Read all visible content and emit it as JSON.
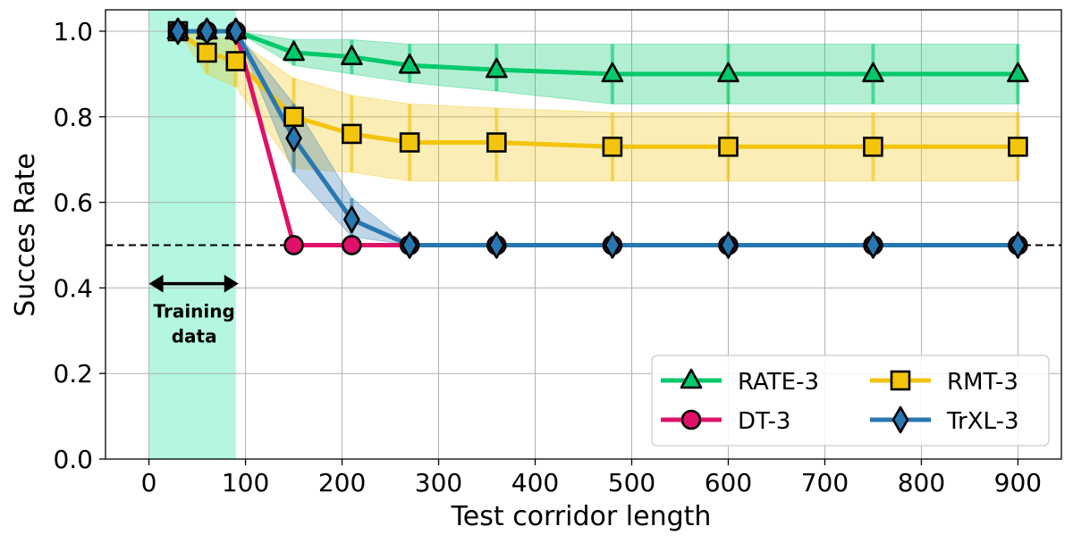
{
  "chart_data": {
    "type": "line",
    "title": "",
    "xlabel": "Test corridor length",
    "ylabel": "Succes Rate",
    "xlim": [
      -45,
      945
    ],
    "ylim": [
      0.0,
      1.05
    ],
    "xticks": [
      0,
      100,
      200,
      300,
      400,
      500,
      600,
      700,
      800,
      900
    ],
    "yticks": [
      0.0,
      0.2,
      0.4,
      0.6,
      0.8,
      1.0
    ],
    "ytick_labels": [
      "0.0",
      "0.2",
      "0.4",
      "0.6",
      "0.8",
      "1.0"
    ],
    "grid": true,
    "legend_position": "bottom-right",
    "training_region": {
      "x_start": 0,
      "x_end": 90,
      "label_line1": "Training",
      "label_line2": "data",
      "color": "#b3f7e2",
      "arrow_y": 0.41
    },
    "reference_line": {
      "y": 0.5,
      "style": "dashed",
      "color": "#000000"
    },
    "series": [
      {
        "name": "RATE-3",
        "color": "#00c96b",
        "marker": "triangle",
        "x": [
          30,
          60,
          90,
          150,
          210,
          270,
          360,
          480,
          600,
          750,
          900
        ],
        "values": [
          1.0,
          1.0,
          1.0,
          0.95,
          0.94,
          0.92,
          0.91,
          0.9,
          0.9,
          0.9,
          0.9
        ],
        "lower": [
          1.0,
          1.0,
          1.0,
          0.92,
          0.9,
          0.88,
          0.86,
          0.83,
          0.83,
          0.83,
          0.83
        ],
        "upper": [
          1.0,
          1.0,
          1.0,
          0.98,
          0.98,
          0.97,
          0.97,
          0.97,
          0.97,
          0.97,
          0.97
        ]
      },
      {
        "name": "RMT-3",
        "color": "#f2c40c",
        "marker": "square",
        "x": [
          30,
          60,
          90,
          150,
          210,
          270,
          360,
          480,
          600,
          750,
          900
        ],
        "values": [
          1.0,
          0.95,
          0.93,
          0.8,
          0.76,
          0.74,
          0.74,
          0.73,
          0.73,
          0.73,
          0.73
        ],
        "lower": [
          1.0,
          0.9,
          0.87,
          0.68,
          0.67,
          0.65,
          0.65,
          0.65,
          0.65,
          0.65,
          0.65
        ],
        "upper": [
          1.0,
          0.99,
          0.98,
          0.89,
          0.85,
          0.83,
          0.82,
          0.81,
          0.81,
          0.81,
          0.81
        ]
      },
      {
        "name": "DT-3",
        "color": "#e0116a",
        "marker": "circle",
        "x": [
          30,
          60,
          90,
          150,
          210,
          270,
          360,
          480,
          600,
          750,
          900
        ],
        "values": [
          1.0,
          1.0,
          1.0,
          0.5,
          0.5,
          0.5,
          0.5,
          0.5,
          0.5,
          0.5,
          0.5
        ]
      },
      {
        "name": "TrXL-3",
        "color": "#2877b0",
        "marker": "diamond",
        "x": [
          30,
          60,
          90,
          150,
          210,
          270,
          360,
          480,
          600,
          750,
          900
        ],
        "values": [
          1.0,
          1.0,
          1.0,
          0.75,
          0.56,
          0.5,
          0.5,
          0.5,
          0.5,
          0.5,
          0.5
        ],
        "lower": [
          1.0,
          1.0,
          1.0,
          0.67,
          0.52,
          0.5,
          0.5,
          0.5,
          0.5,
          0.5,
          0.5
        ],
        "upper": [
          1.0,
          1.0,
          1.0,
          0.83,
          0.61,
          0.5,
          0.5,
          0.5,
          0.5,
          0.5,
          0.5
        ]
      }
    ],
    "legend_order": [
      "RATE-3",
      "DT-3",
      "RMT-3",
      "TrXL-3"
    ]
  }
}
